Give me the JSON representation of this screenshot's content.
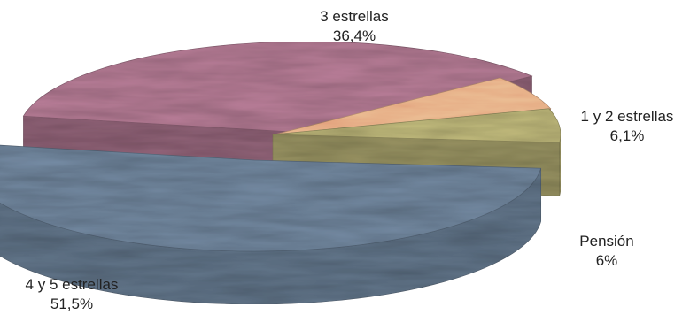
{
  "chart_data": {
    "type": "pie",
    "style": "3d-exploded",
    "slices": [
      {
        "label": "3 estrellas",
        "value_label": "36,4%",
        "value": 36.4,
        "color": "#a8728a"
      },
      {
        "label": "1 y 2 estrellas",
        "value_label": "6,1%",
        "value": 6.1,
        "color": "#e8b48c"
      },
      {
        "label": "Pensión",
        "value_label": "6%",
        "value": 6,
        "color": "#b2ac72"
      },
      {
        "label": "4 y 5 estrellas",
        "value_label": "51,5%",
        "value": 51.5,
        "color": "#687c92"
      }
    ]
  }
}
